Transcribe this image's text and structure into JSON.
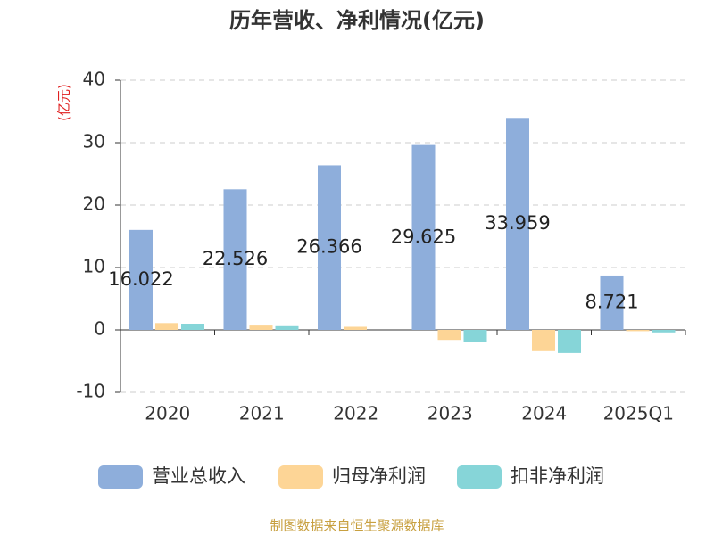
{
  "chart_data": {
    "type": "bar",
    "title": "历年营收、净利情况(亿元)",
    "y_label": "(亿元)",
    "categories": [
      "2020",
      "2021",
      "2022",
      "2023",
      "2024",
      "2025Q1"
    ],
    "series": [
      {
        "name": "营业总收入",
        "color": "#8eaedb",
        "values": [
          16.022,
          22.526,
          26.366,
          29.625,
          33.959,
          8.721
        ],
        "show_labels": true
      },
      {
        "name": "归母净利润",
        "color": "#fdd596",
        "values": [
          1.1,
          0.7,
          0.5,
          -1.6,
          -3.4,
          -0.2
        ]
      },
      {
        "name": "扣非净利润",
        "color": "#86d5d8",
        "values": [
          1.0,
          0.6,
          0,
          -2.0,
          -3.7,
          -0.4
        ]
      }
    ],
    "ylim": [
      -10,
      40
    ],
    "yticks": [
      -10,
      0,
      10,
      20,
      30,
      40
    ],
    "grid": true,
    "source": "制图数据来自恒生聚源数据库"
  }
}
